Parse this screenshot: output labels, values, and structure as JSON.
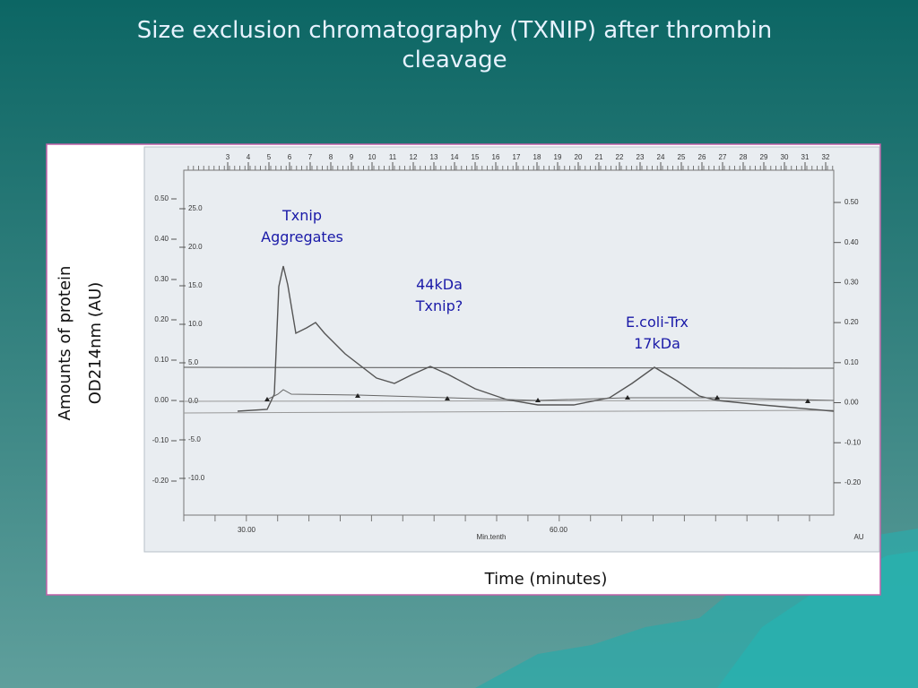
{
  "slide": {
    "title": [
      "Size exclusion chromatography (TXNIP) after thrombin",
      "cleavage"
    ],
    "y_axis_label": [
      "Amounts of protein",
      "OD214nm (AU)"
    ],
    "x_axis_label": "Time (minutes)",
    "annotations": [
      [
        "Txnip",
        "Aggregates"
      ],
      [
        "44kDa",
        "Txnip?"
      ],
      [
        "E.coli-Trx",
        "17kDa"
      ]
    ],
    "scan": {
      "left_ticks": [
        "0.50",
        "0.40",
        "0.30",
        "0.20",
        "0.10",
        "0.00",
        "-0.10",
        "-0.20"
      ],
      "inner_ticks": [
        "25.0",
        "20.0",
        "15.0",
        "10.0",
        "5.0",
        "0.0",
        "-5.0",
        "-10.0"
      ],
      "right_ticks": [
        "0.50",
        "0.40",
        "0.30",
        "0.20",
        "0.10",
        "0.00",
        "-0.10",
        "-0.20"
      ],
      "fraction_ticks": [
        "3",
        "4",
        "5",
        "6",
        "7",
        "8",
        "9",
        "10",
        "11",
        "12",
        "13",
        "14",
        "15",
        "16",
        "17",
        "18",
        "19",
        "20",
        "21",
        "22",
        "23",
        "24",
        "25",
        "26",
        "27",
        "28",
        "29",
        "30",
        "31",
        "32"
      ],
      "time_ticks": [
        "30.00",
        "60.00"
      ],
      "time_unit": "Min.tenth",
      "right_unit": "AU"
    }
  }
}
